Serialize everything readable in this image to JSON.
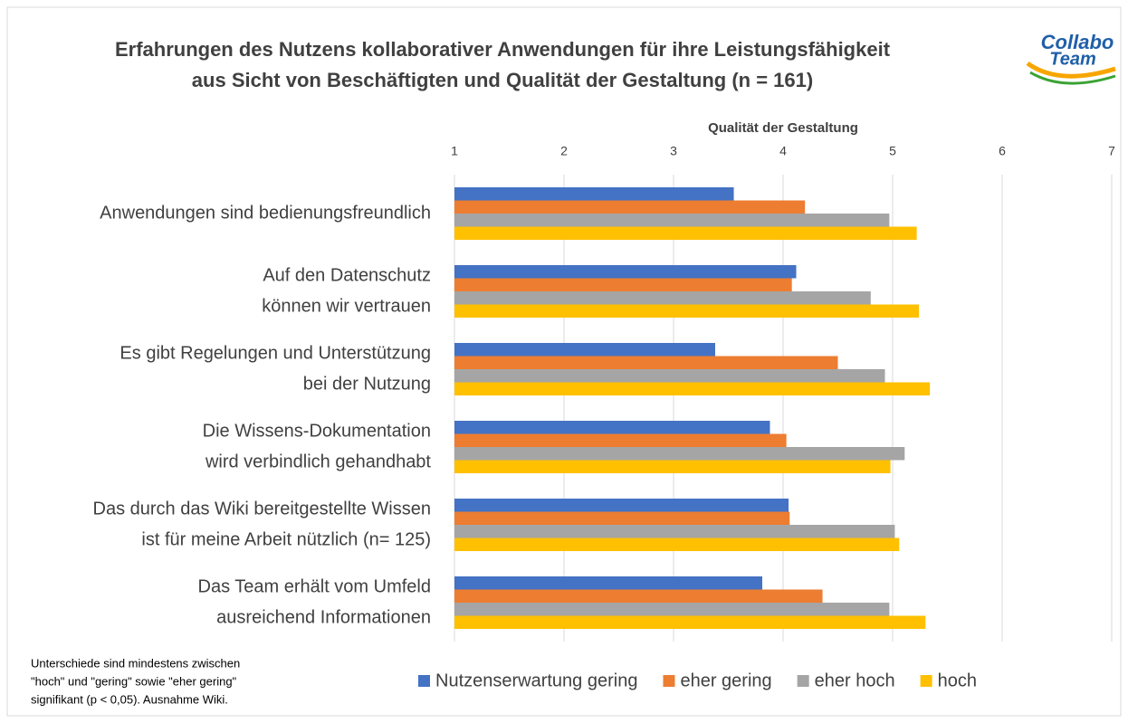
{
  "chart_data": {
    "type": "hbar",
    "title": [
      "Erfahrungen des Nutzens kollaborativer Anwendungen für ihre Leistungsfähigkeit",
      "aus Sicht von Beschäftigten und Qualität der Gestaltung  (n = 161)"
    ],
    "x_label": "Qualität der Gestaltung",
    "categories": [
      [
        "Anwendungen sind bedienungsfreundlich"
      ],
      [
        "Auf den Datenschutz",
        "können wir vertrauen"
      ],
      [
        "Es gibt Regelungen und Unterstützung",
        "bei der Nutzung"
      ],
      [
        "Die Wissens-Dokumentation",
        "wird verbindlich gehandhabt"
      ],
      [
        "Das durch das Wiki bereitgestellte Wissen",
        "ist für meine Arbeit nützlich (n= 125)"
      ],
      [
        "Das Team erhält vom Umfeld",
        "ausreichend Informationen"
      ]
    ],
    "series": [
      {
        "name": "Nutzenserwartung gering",
        "color": "#4472c4",
        "values": [
          3.55,
          4.12,
          3.38,
          3.88,
          4.05,
          3.81
        ]
      },
      {
        "name": "eher gering",
        "color": "#ed7d31",
        "values": [
          4.2,
          4.08,
          4.5,
          4.03,
          4.06,
          4.36
        ]
      },
      {
        "name": "eher hoch",
        "color": "#a5a5a5",
        "values": [
          4.97,
          4.8,
          4.93,
          5.11,
          5.02,
          4.97
        ]
      },
      {
        "name": "hoch",
        "color": "#ffc000",
        "values": [
          5.22,
          5.24,
          5.34,
          4.98,
          5.06,
          5.3
        ]
      }
    ],
    "xlim": [
      1,
      7
    ],
    "xticks": [
      1,
      2,
      3,
      4,
      5,
      6,
      7
    ],
    "grid": true,
    "legend": "bottom",
    "note": [
      "Unterschiede sind mindestens zwischen",
      "\"hoch\" und \"gering\" sowie \"eher gering\"",
      "signifikant (p < 0,05). Ausnahme Wiki."
    ]
  },
  "logo": [
    "Collabo",
    "Team"
  ]
}
